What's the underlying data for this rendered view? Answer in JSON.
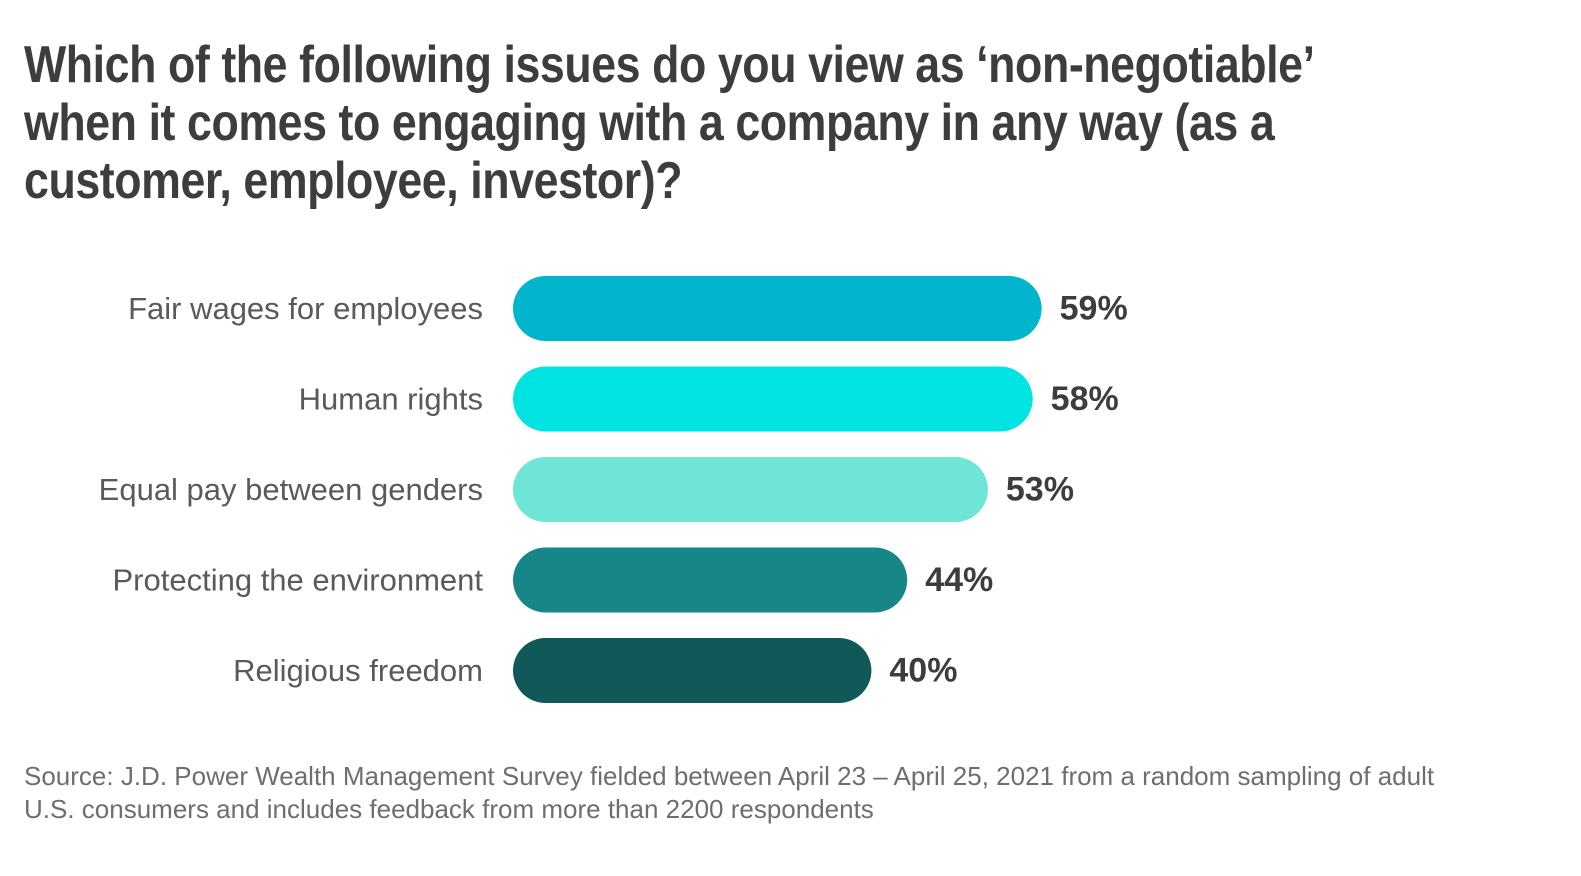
{
  "chart_data": {
    "type": "bar",
    "orientation": "horizontal",
    "title": "Which of the following issues do you view as ‘non-negotiable’ when it comes to engaging with a company in any way (as a customer, employee, investor)?",
    "categories": [
      "Fair wages for employees",
      "Human rights",
      "Equal pay between genders",
      "Protecting the environment",
      "Religious freedom"
    ],
    "values": [
      59,
      58,
      53,
      44,
      40
    ],
    "value_labels": [
      "59%",
      "58%",
      "53%",
      "44%",
      "40%"
    ],
    "colors": [
      "#00b5cc",
      "#00e3e3",
      "#6ee5d6",
      "#168686",
      "#115858"
    ],
    "unit": "%",
    "xlim": [
      0,
      100
    ],
    "grid": false,
    "legend": "none",
    "source": "Source: J.D. Power Wealth Management Survey fielded between April 23 – April 25, 2021 from a random sampling of adult U.S. consumers and includes feedback from more than 2200 respondents"
  }
}
